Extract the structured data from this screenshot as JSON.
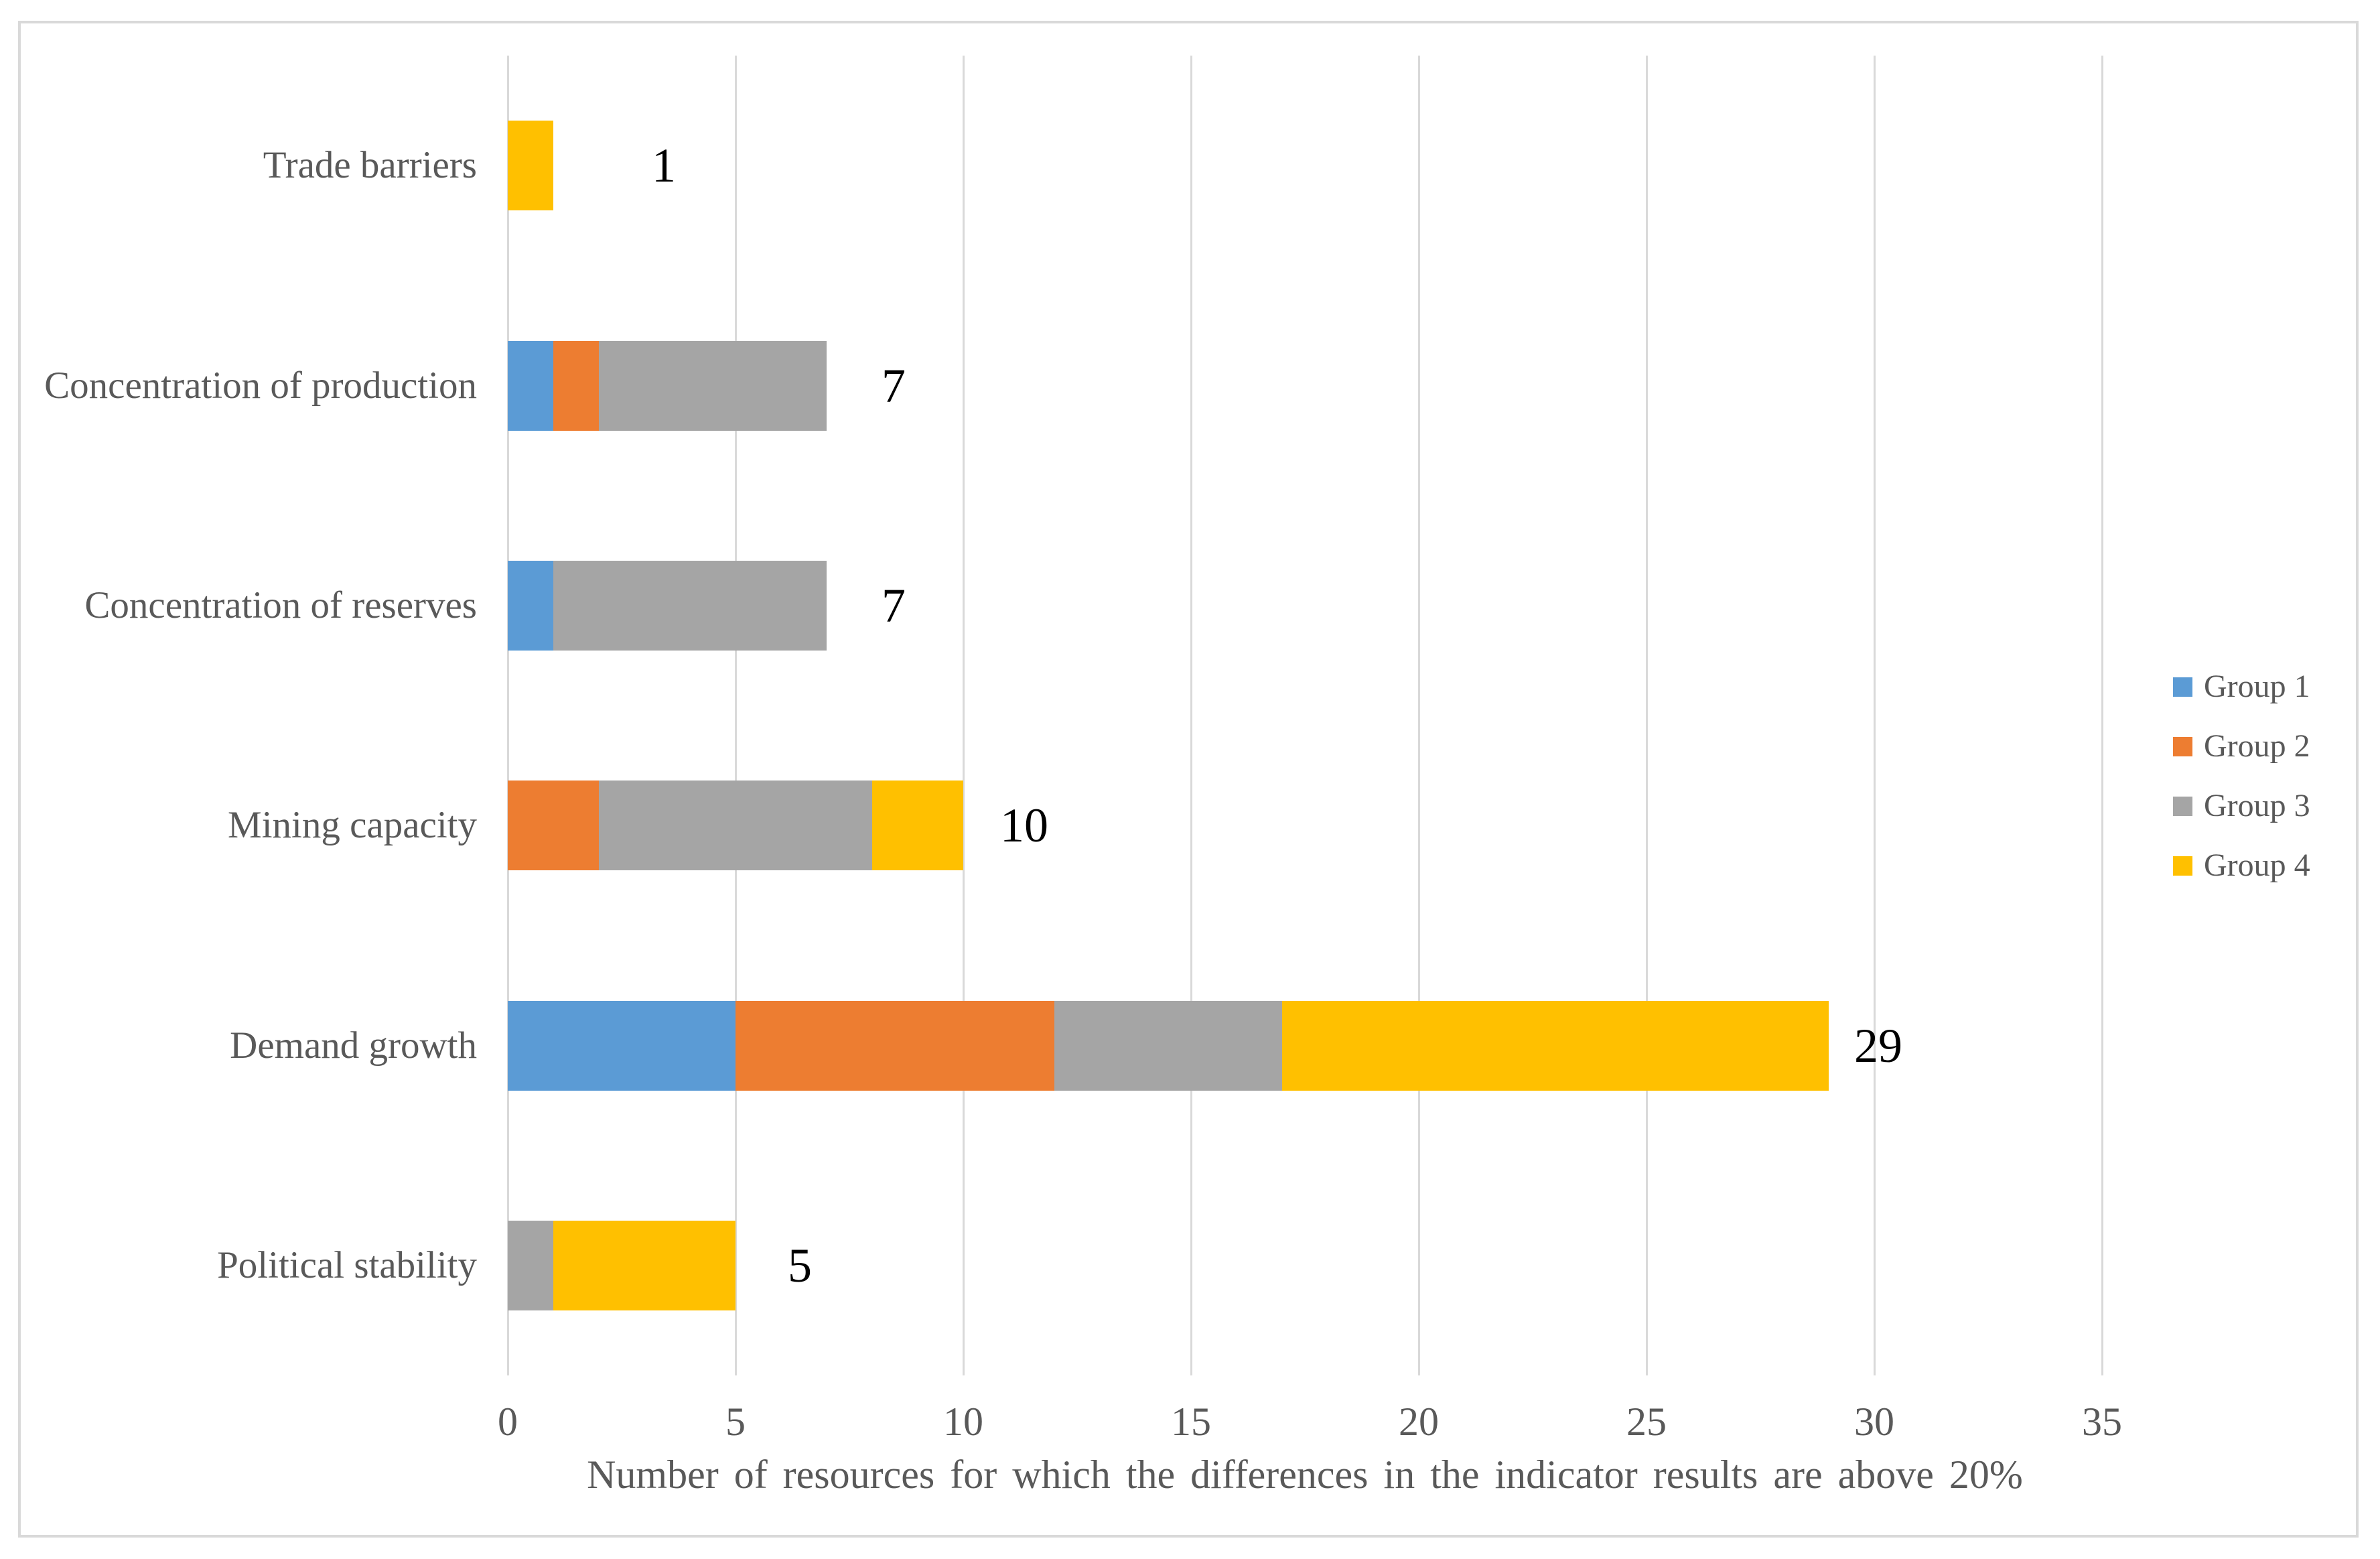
{
  "palette": {
    "group1_blue": "#5B9BD5",
    "group2_orange": "#ED7D31",
    "group3_gray": "#A5A5A5",
    "group4_yellow": "#FFC000",
    "axis_text_gray": "#595959",
    "gridline_gray": "#D9D9D9",
    "frame_border_gray": "#D9D9D9",
    "data_label_black": "#000000",
    "background": "#FFFFFF"
  },
  "chart_data": {
    "type": "bar",
    "orientation": "horizontal",
    "stacked": true,
    "title": "",
    "xlabel": "Number of resources for which the differences in the indicator results are above 20%",
    "ylabel": "",
    "xlim": [
      0,
      35
    ],
    "x_tick_step": 5,
    "x_ticks": [
      "0",
      "5",
      "10",
      "15",
      "20",
      "25",
      "30",
      "35"
    ],
    "grid": "vertical gridlines only",
    "legend_position": "middle-right",
    "categories": [
      "Trade barriers",
      "Concentration of production",
      "Concentration of reserves",
      "Mining capacity",
      "Demand growth",
      "Political stability"
    ],
    "series": [
      {
        "name": "Group 1",
        "color": "#5B9BD5",
        "values": [
          0,
          1,
          1,
          0,
          5,
          0
        ]
      },
      {
        "name": "Group 2",
        "color": "#ED7D31",
        "values": [
          0,
          1,
          0,
          2,
          7,
          0
        ]
      },
      {
        "name": "Group 3",
        "color": "#A5A5A5",
        "values": [
          0,
          5,
          6,
          6,
          5,
          1
        ]
      },
      {
        "name": "Group 4",
        "color": "#FFC000",
        "values": [
          1,
          0,
          0,
          2,
          12,
          4
        ]
      }
    ],
    "totals": [
      1,
      7,
      7,
      10,
      29,
      5
    ],
    "total_labels": [
      "1",
      "7",
      "7",
      "10",
      "29",
      "5"
    ],
    "legend": [
      {
        "label": "Group 1",
        "color": "#5B9BD5"
      },
      {
        "label": "Group 2",
        "color": "#ED7D31"
      },
      {
        "label": "Group 3",
        "color": "#A5A5A5"
      },
      {
        "label": "Group 4",
        "color": "#FFC000"
      }
    ]
  }
}
